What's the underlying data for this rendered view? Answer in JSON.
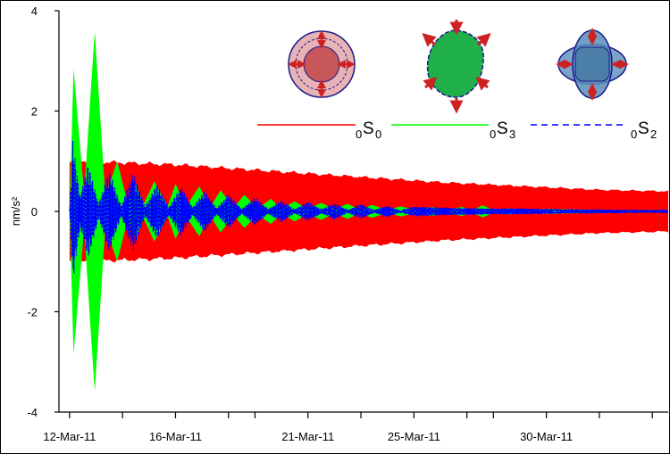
{
  "chart_data": {
    "type": "line",
    "title": "",
    "xlabel": "",
    "ylabel": "nm/s²",
    "ylim": [
      -4,
      4
    ],
    "yticks": [
      4,
      2,
      0,
      -2,
      -4
    ],
    "xlim_days": [
      11.6,
      34.6
    ],
    "xtick_labels": [
      {
        "day": 12,
        "label": "12-Mar-11"
      },
      {
        "day": 16,
        "label": "16-Mar-11"
      },
      {
        "day": 21,
        "label": "21-Mar-11"
      },
      {
        "day": 25,
        "label": "25-Mar-11"
      },
      {
        "day": 30,
        "label": "30-Mar-11"
      }
    ],
    "minor_tick_days": [
      14,
      18,
      19,
      23,
      27,
      28,
      32,
      34
    ],
    "grid": false,
    "legend_placement": "top-right",
    "series": [
      {
        "name": "0S0",
        "legend_sub": "0",
        "legend_main": "S",
        "legend_mode": "0",
        "color": "#ff0000",
        "style": "solid",
        "amplitude_envelope": {
          "day": [
            12.0,
            12.5,
            14,
            16,
            18,
            20,
            22,
            24,
            26,
            28,
            30,
            32,
            34.6
          ],
          "value": [
            1.0,
            1.0,
            0.97,
            0.93,
            0.86,
            0.79,
            0.72,
            0.65,
            0.58,
            0.53,
            0.48,
            0.43,
            0.4
          ]
        }
      },
      {
        "name": "0S3",
        "legend_sub": "0",
        "legend_main": "S",
        "legend_mode": "3",
        "color": "#00ff00",
        "style": "solid",
        "amplitude_envelope": {
          "day": [
            12.0,
            12.15,
            12.55,
            12.95,
            13.35,
            13.8,
            14.2,
            14.5,
            14.8,
            15.2,
            15.7,
            16.0,
            16.4,
            16.9,
            17.3,
            17.7,
            18.2,
            18.6,
            19.1,
            19.6,
            20.0,
            20.5,
            21.0,
            21.5,
            22.0,
            22.5,
            23.0,
            23.4,
            24.0,
            24.5,
            25.1,
            25.7,
            26.2,
            26.8,
            27.2,
            27.6,
            28.0,
            28.6,
            29.3,
            30.0,
            31.0,
            32.0,
            33.0,
            34.6
          ],
          "value": [
            0.0,
            2.85,
            0.35,
            3.6,
            0.3,
            1.0,
            0.15,
            0.55,
            0.15,
            0.6,
            0.1,
            0.55,
            0.1,
            0.5,
            0.08,
            0.42,
            0.08,
            0.33,
            0.06,
            0.25,
            0.05,
            0.2,
            0.05,
            0.17,
            0.04,
            0.15,
            0.03,
            0.13,
            0.03,
            0.1,
            0.03,
            0.09,
            0.02,
            0.09,
            0.03,
            0.12,
            0.03,
            0.06,
            0.02,
            0.05,
            0.04,
            0.03,
            0.02,
            0.02
          ]
        }
      },
      {
        "name": "0S2",
        "legend_sub": "0",
        "legend_main": "S",
        "legend_mode": "2",
        "color": "#0000ff",
        "style": "dashed",
        "amplitude_envelope": {
          "day": [
            12.0,
            12.12,
            12.4,
            12.7,
            13.1,
            13.5,
            13.95,
            14.4,
            14.85,
            15.3,
            15.75,
            16.2,
            16.65,
            17.1,
            17.55,
            18.0,
            18.5,
            19.0,
            19.5,
            20.0,
            20.5,
            21.0,
            21.5,
            22.0,
            22.5,
            23.0,
            23.5,
            24.0,
            24.5,
            25.0,
            26.0,
            27.0,
            28.0,
            29.0,
            30.0,
            31.0,
            32.0,
            33.0,
            34.6
          ],
          "value": [
            0.0,
            1.42,
            0.3,
            0.95,
            0.15,
            0.82,
            0.1,
            0.8,
            0.1,
            0.55,
            0.08,
            0.5,
            0.08,
            0.42,
            0.06,
            0.35,
            0.05,
            0.28,
            0.05,
            0.22,
            0.04,
            0.2,
            0.04,
            0.17,
            0.03,
            0.15,
            0.03,
            0.12,
            0.02,
            0.1,
            0.08,
            0.07,
            0.06,
            0.06,
            0.05,
            0.04,
            0.04,
            0.03,
            0.03
          ]
        }
      }
    ],
    "insets": [
      {
        "mode": "0S0",
        "shape": "radial-breathing-sphere",
        "fill": "#c8575a",
        "ring_fill": "#e8b3b5",
        "outline": "#1a1a8c",
        "arrow_color": "#cc2222"
      },
      {
        "mode": "0S3",
        "shape": "three-lobed-deformation",
        "fill": "#1fb04a",
        "outline": "#1a1a8c",
        "arrow_color": "#cc2222"
      },
      {
        "mode": "0S2",
        "shape": "football-deformation",
        "fill": "#4b7fa8",
        "ring_fill": "#7ea3c9",
        "outline": "#1a1a8c",
        "arrow_color": "#cc2222"
      }
    ]
  }
}
